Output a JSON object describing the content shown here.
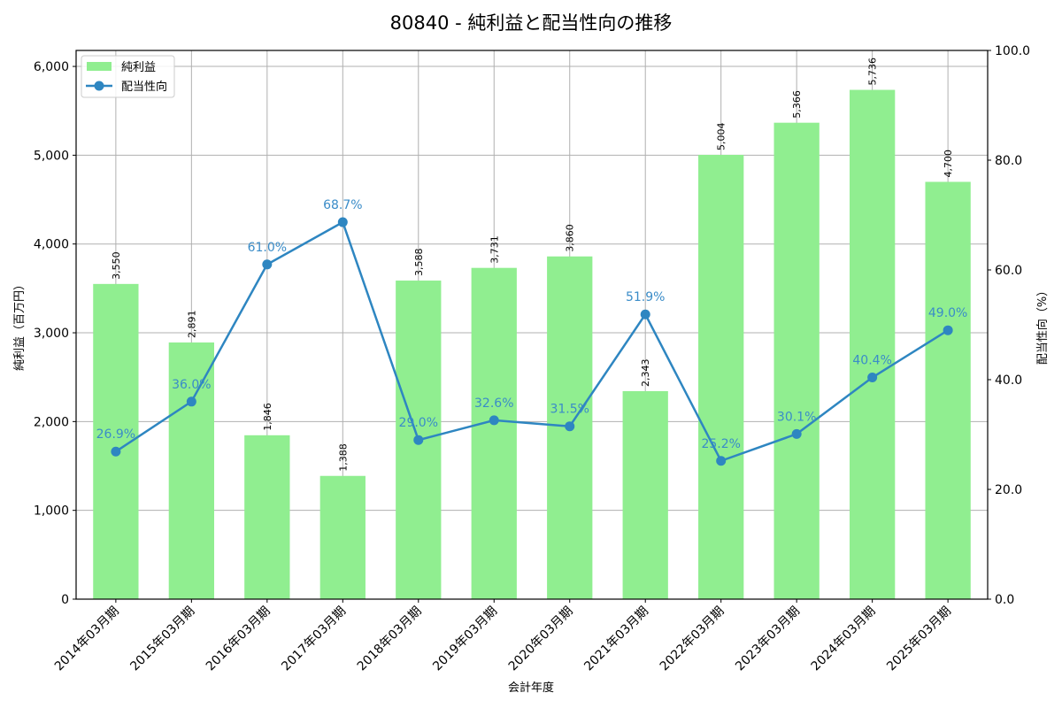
{
  "chart_data": {
    "type": "bar+line",
    "title": "80840 - 純利益と配当性向の推移",
    "xlabel": "会計年度",
    "ylabel": "純利益（百万円）",
    "ylabel_right": "配当性向（%）",
    "ylim": [
      0,
      6180
    ],
    "ylim_right": [
      0,
      100
    ],
    "yticks": [
      "0",
      "1,000",
      "2,000",
      "3,000",
      "4,000",
      "5,000",
      "6,000"
    ],
    "yticks_right": [
      "0.0",
      "20.0",
      "40.0",
      "60.0",
      "80.0",
      "100.0"
    ],
    "grid": true,
    "legend_position": "upper left",
    "categories": [
      "2014年03月期",
      "2015年03月期",
      "2016年03月期",
      "2017年03月期",
      "2018年03月期",
      "2019年03月期",
      "2020年03月期",
      "2021年03月期",
      "2022年03月期",
      "2023年03月期",
      "2024年03月期",
      "2025年03月期"
    ],
    "series": [
      {
        "name": "純利益",
        "type": "bar",
        "axis": "left",
        "color": "#90ee90",
        "values": [
          3550,
          2891,
          1846,
          1388,
          3588,
          3731,
          3860,
          2343,
          5004,
          5366,
          5736,
          4700
        ],
        "labels": [
          "3,550",
          "2,891",
          "1,846",
          "1,388",
          "3,588",
          "3,731",
          "3,860",
          "2,343",
          "5,004",
          "5,366",
          "5,736",
          "4,700"
        ]
      },
      {
        "name": "配当性向",
        "type": "line",
        "axis": "right",
        "color": "#2e86c1",
        "values": [
          26.9,
          36.0,
          61.0,
          68.7,
          29.0,
          32.6,
          31.5,
          51.9,
          25.2,
          30.1,
          40.4,
          49.0
        ],
        "labels": [
          "26.9%",
          "36.0%",
          "61.0%",
          "68.7%",
          "29.0%",
          "32.6%",
          "31.5%",
          "51.9%",
          "25.2%",
          "30.1%",
          "40.4%",
          "49.0%"
        ]
      }
    ]
  }
}
